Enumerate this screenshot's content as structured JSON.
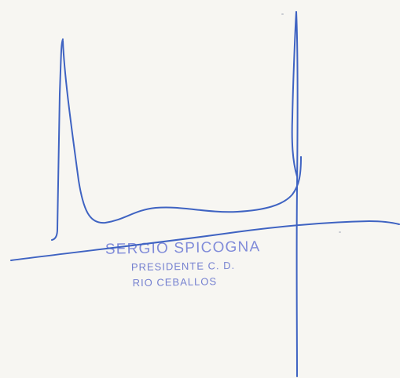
{
  "stamp": {
    "name": "SERGIO SPICOGNA",
    "role": "PRESIDENTE C. D.",
    "place": "RIO CEBALLOS"
  },
  "colors": {
    "paper": "#f7f6f2",
    "ink": "#3f63c2",
    "stamp_ink": "#7a86d8"
  }
}
